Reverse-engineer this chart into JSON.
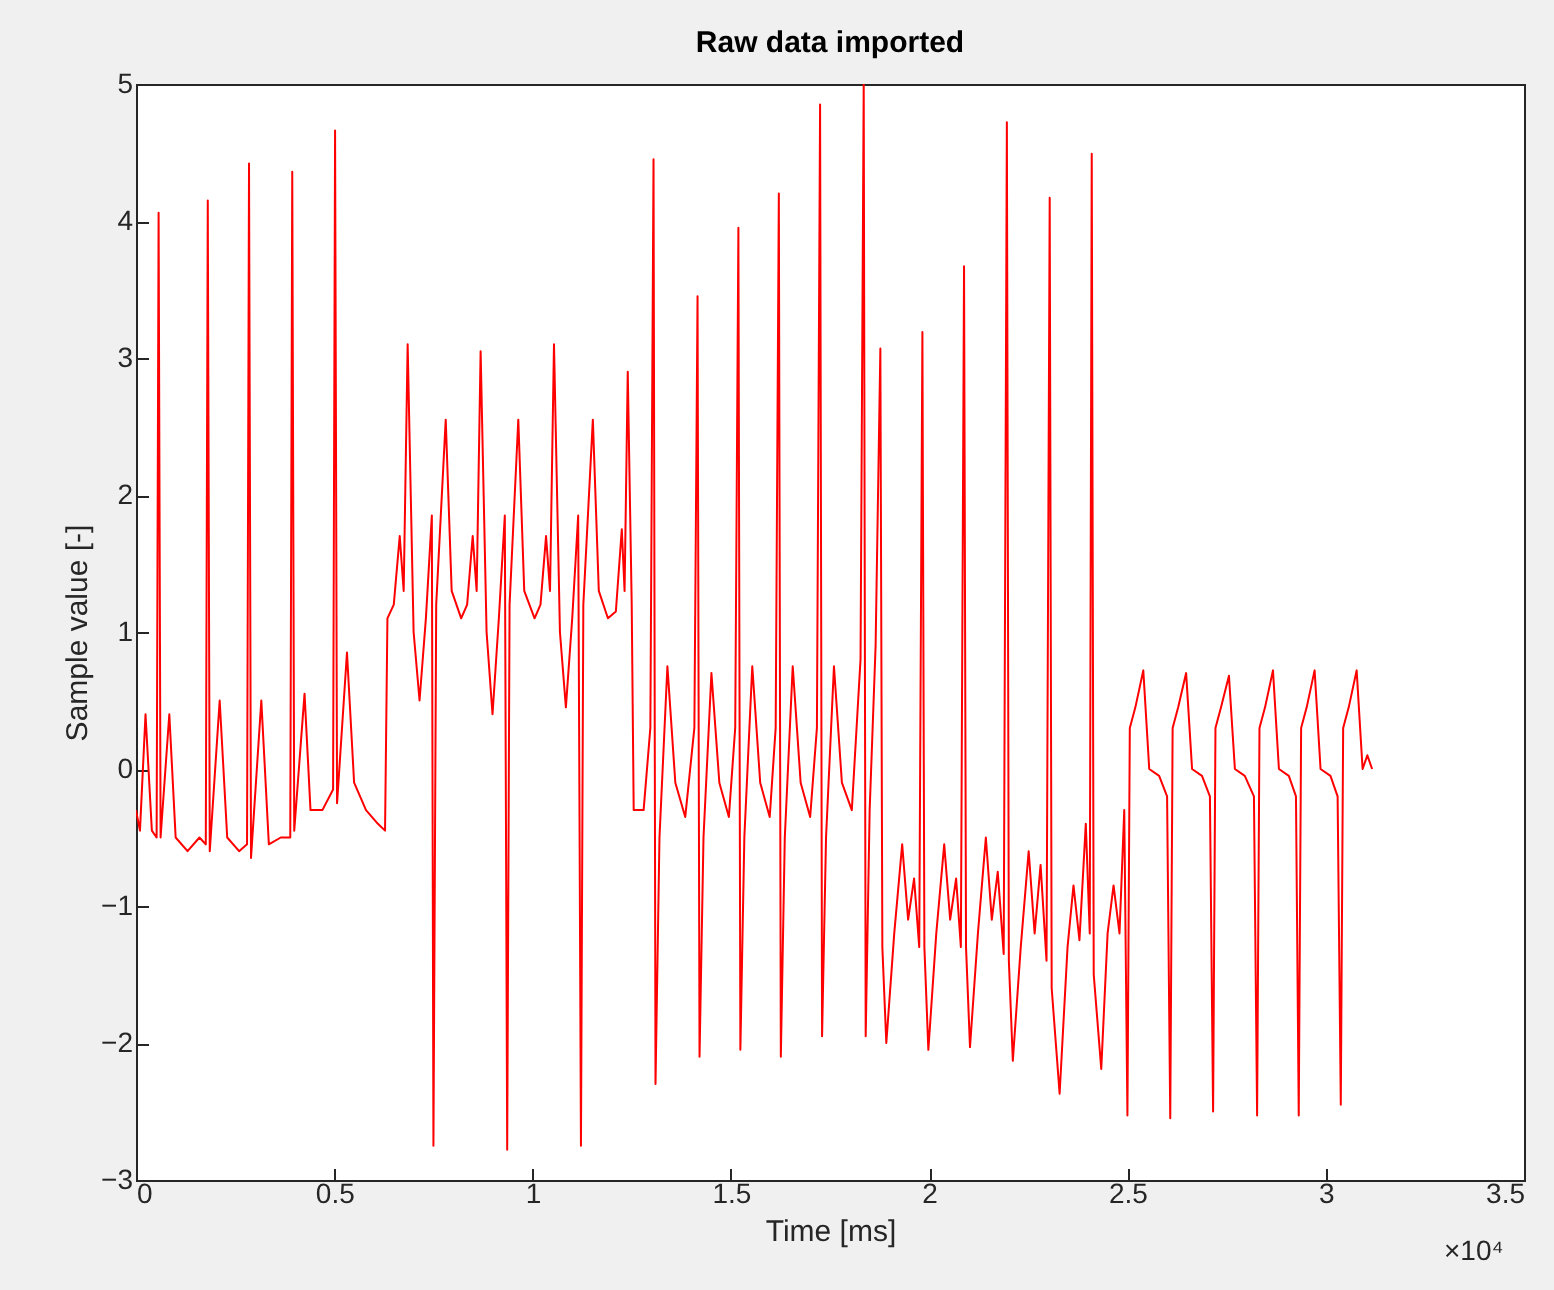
{
  "chart_data": {
    "type": "line",
    "title": "Raw data imported",
    "xlabel": "Time [ms]",
    "ylabel": "Sample value [-]",
    "color": "#ff0000",
    "grid": false,
    "xlim": [
      0,
      3.5
    ],
    "xticks": [
      0,
      0.5,
      1,
      1.5,
      2,
      2.5,
      3,
      3.5
    ],
    "ylim": [
      -3,
      5
    ],
    "yticks": [
      -3,
      -2,
      -1,
      0,
      1,
      2,
      3,
      4,
      5
    ],
    "annotations": [
      "×10⁴"
    ],
    "x": [
      0,
      0.01,
      0.024,
      0.04,
      0.052,
      0.057,
      0.062,
      0.084,
      0.1,
      0.13,
      0.16,
      0.176,
      0.181,
      0.186,
      0.211,
      0.23,
      0.26,
      0.28,
      0.285,
      0.29,
      0.316,
      0.335,
      0.365,
      0.389,
      0.394,
      0.399,
      0.425,
      0.44,
      0.47,
      0.497,
      0.502,
      0.507,
      0.532,
      0.55,
      0.58,
      0.61,
      0.628,
      0.634,
      0.65,
      0.665,
      0.675,
      0.685,
      0.7,
      0.715,
      0.731,
      0.746,
      0.75,
      0.757,
      0.781,
      0.796,
      0.82,
      0.835,
      0.849,
      0.859,
      0.869,
      0.884,
      0.899,
      0.915,
      0.93,
      0.936,
      0.942,
      0.964,
      0.979,
      1.005,
      1.02,
      1.034,
      1.044,
      1.054,
      1.069,
      1.084,
      1.1,
      1.115,
      1.122,
      1.128,
      1.152,
      1.167,
      1.19,
      1.21,
      1.225,
      1.232,
      1.24,
      1.25,
      1.255,
      1.28,
      1.297,
      1.305,
      1.31,
      1.32,
      1.34,
      1.36,
      1.385,
      1.408,
      1.416,
      1.421,
      1.431,
      1.451,
      1.471,
      1.495,
      1.511,
      1.519,
      1.524,
      1.534,
      1.554,
      1.574,
      1.598,
      1.613,
      1.621,
      1.626,
      1.636,
      1.656,
      1.676,
      1.7,
      1.717,
      1.725,
      1.73,
      1.74,
      1.76,
      1.78,
      1.805,
      1.827,
      1.835,
      1.84,
      1.85,
      1.865,
      1.877,
      1.882,
      1.892,
      1.912,
      1.932,
      1.947,
      1.962,
      1.975,
      1.983,
      1.988,
      1.998,
      2.018,
      2.038,
      2.053,
      2.068,
      2.08,
      2.088,
      2.093,
      2.103,
      2.123,
      2.143,
      2.158,
      2.173,
      2.188,
      2.196,
      2.201,
      2.211,
      2.231,
      2.251,
      2.266,
      2.281,
      2.296,
      2.304,
      2.309,
      2.329,
      2.349,
      2.364,
      2.379,
      2.395,
      2.405,
      2.41,
      2.415,
      2.434,
      2.45,
      2.465,
      2.48,
      2.492,
      2.5,
      2.506,
      2.52,
      2.54,
      2.555,
      2.58,
      2.6,
      2.608,
      2.614,
      2.628,
      2.648,
      2.663,
      2.688,
      2.708,
      2.716,
      2.722,
      2.736,
      2.756,
      2.771,
      2.796,
      2.819,
      2.827,
      2.833,
      2.847,
      2.867,
      2.882,
      2.907,
      2.925,
      2.932,
      2.938,
      2.952,
      2.972,
      2.987,
      3.012,
      3.03,
      3.038,
      3.044,
      3.058,
      3.078,
      3.093,
      3.105,
      3.117
    ],
    "values": [
      -0.3,
      -0.45,
      0.4,
      -0.45,
      -0.5,
      4.06,
      -0.5,
      0.4,
      -0.5,
      -0.6,
      -0.5,
      -0.55,
      4.15,
      -0.6,
      0.5,
      -0.5,
      -0.6,
      -0.55,
      4.42,
      -0.65,
      0.5,
      -0.55,
      -0.5,
      -0.5,
      4.36,
      -0.45,
      0.55,
      -0.3,
      -0.3,
      -0.15,
      4.66,
      -0.25,
      0.85,
      -0.1,
      -0.3,
      -0.4,
      -0.45,
      1.1,
      1.2,
      1.7,
      1.3,
      3.1,
      1.0,
      0.5,
      1.1,
      1.85,
      -2.75,
      1.2,
      2.55,
      1.3,
      1.1,
      1.2,
      1.7,
      1.3,
      3.05,
      1.0,
      0.4,
      1.1,
      1.85,
      -2.78,
      1.2,
      2.55,
      1.3,
      1.1,
      1.2,
      1.7,
      1.3,
      3.1,
      1.0,
      0.45,
      1.1,
      1.85,
      -2.75,
      1.2,
      2.55,
      1.3,
      1.1,
      1.15,
      1.75,
      1.3,
      2.9,
      1.2,
      -0.3,
      -0.3,
      0.3,
      4.45,
      -2.3,
      -0.5,
      0.75,
      -0.1,
      -0.35,
      0.3,
      3.45,
      -2.1,
      -0.5,
      0.7,
      -0.1,
      -0.35,
      0.3,
      3.95,
      -2.05,
      -0.5,
      0.75,
      -0.1,
      -0.35,
      0.3,
      4.2,
      -2.1,
      -0.5,
      0.75,
      -0.1,
      -0.35,
      0.3,
      4.85,
      -1.95,
      -0.5,
      0.75,
      -0.1,
      -0.3,
      0.8,
      5.0,
      -1.95,
      -0.3,
      0.9,
      3.07,
      -1.3,
      -2.0,
      -1.2,
      -0.55,
      -1.1,
      -0.8,
      -1.3,
      3.19,
      -1.3,
      -2.05,
      -1.2,
      -0.55,
      -1.1,
      -0.8,
      -1.3,
      3.67,
      -1.3,
      -2.03,
      -1.2,
      -0.5,
      -1.1,
      -0.75,
      -1.35,
      4.72,
      -1.4,
      -2.13,
      -1.3,
      -0.6,
      -1.2,
      -0.7,
      -1.4,
      4.17,
      -1.6,
      -2.37,
      -1.3,
      -0.85,
      -1.25,
      -0.4,
      -1.2,
      4.49,
      -1.5,
      -2.19,
      -1.2,
      -0.85,
      -1.2,
      -0.3,
      -2.53,
      0.3,
      0.45,
      0.72,
      0.0,
      -0.05,
      -0.2,
      -2.55,
      0.3,
      0.45,
      0.7,
      0.0,
      -0.05,
      -0.2,
      -2.5,
      0.3,
      0.45,
      0.68,
      0.0,
      -0.05,
      -0.2,
      -2.53,
      0.3,
      0.45,
      0.72,
      0.0,
      -0.05,
      -0.2,
      -2.53,
      0.3,
      0.45,
      0.72,
      0.0,
      -0.05,
      -0.2,
      -2.45,
      0.3,
      0.45,
      0.72,
      0.0,
      0.1,
      0.0
    ]
  }
}
